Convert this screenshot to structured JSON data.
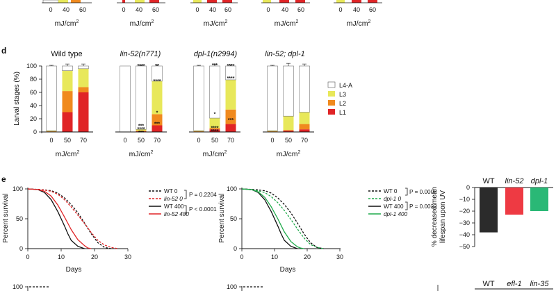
{
  "top_strip": {
    "groups": [
      {
        "ticks": [
          "0",
          "40",
          "60"
        ],
        "unit_label": "mJ/cm",
        "unit_sup": "2"
      },
      {
        "ticks": [
          "0",
          "40",
          "60"
        ],
        "unit_label": "mJ/cm",
        "unit_sup": "2"
      },
      {
        "ticks": [
          "0",
          "40",
          "60"
        ],
        "unit_label": "mJ/cm",
        "unit_sup": "2"
      },
      {
        "ticks": [
          "0",
          "40",
          "60"
        ],
        "unit_label": "mJ/cm",
        "unit_sup": "2"
      },
      {
        "ticks": [
          "0",
          "40",
          "60"
        ],
        "unit_label": "mJ/cm",
        "unit_sup": "2"
      }
    ],
    "colors": [
      "#e8e85a",
      "#f08a1e",
      "#e02426",
      "#ffffff"
    ]
  },
  "panel_d": {
    "label": "d",
    "y_axis_label": "Larval stages (%)",
    "y_ticks": [
      "0",
      "20",
      "40",
      "60",
      "80",
      "100"
    ],
    "legend": [
      {
        "name": "L4-A",
        "color": "#ffffff"
      },
      {
        "name": "L3",
        "color": "#e8e85a"
      },
      {
        "name": "L2",
        "color": "#f08a1e"
      },
      {
        "name": "L1",
        "color": "#e02426"
      }
    ],
    "unit_label": "mJ/cm",
    "unit_sup": "2",
    "chart_data": {
      "type": "bar",
      "stacked": true,
      "categories": [
        "0",
        "50",
        "70"
      ],
      "series_order": [
        "L1",
        "L2",
        "L3",
        "L4-A"
      ],
      "ylim": [
        0,
        100
      ],
      "groups": [
        {
          "title": "Wild type",
          "italic": false,
          "bars": [
            {
              "L1": 0,
              "L2": 1,
              "L3": 1,
              "L4-A": 98,
              "err": 1
            },
            {
              "L1": 30,
              "L2": 32,
              "L3": 31,
              "L4-A": 7,
              "err": 3
            },
            {
              "L1": 60,
              "L2": 8,
              "L3": 28,
              "L4-A": 4,
              "err": 3
            }
          ],
          "stars": [
            [],
            [],
            []
          ]
        },
        {
          "title": "lin-52(n771)",
          "italic": true,
          "bars": [
            {
              "L1": 0,
              "L2": 0,
              "L3": 0,
              "L4-A": 100,
              "err": 0
            },
            {
              "L1": 1,
              "L2": 1,
              "L3": 2,
              "L4-A": 96,
              "err": 1
            },
            {
              "L1": 10,
              "L2": 17,
              "L3": 50,
              "L4-A": 23,
              "err": 2
            }
          ],
          "stars": [
            [],
            [
              [
                "****",
                100
              ],
              [
                "***",
                9
              ],
              [
                "****",
                4
              ],
              [
                "***",
                -1
              ]
            ],
            [
              [
                "**",
                100
              ],
              [
                "****",
                77
              ],
              [
                "*",
                29
              ],
              [
                "***",
                12
              ]
            ]
          ]
        },
        {
          "title": "dpl-1(n2994)",
          "italic": true,
          "bars": [
            {
              "L1": 0,
              "L2": 1,
              "L3": 1,
              "L4-A": 98,
              "err": 1
            },
            {
              "L1": 4,
              "L2": 2,
              "L3": 15,
              "L4-A": 79,
              "err": 2
            },
            {
              "L1": 12,
              "L2": 22,
              "L3": 45,
              "L4-A": 21,
              "err": 2
            }
          ],
          "stars": [
            [],
            [
              [
                "***",
                101
              ],
              [
                "*",
                27
              ],
              [
                "****",
                6
              ],
              [
                "****",
                1
              ]
            ],
            [
              [
                "****",
                100
              ],
              [
                "****",
                81
              ],
              [
                "***",
                18
              ]
            ]
          ]
        },
        {
          "title": "lin-52; dpl-1",
          "italic": true,
          "bars": [
            {
              "L1": 0,
              "L2": 1,
              "L3": 1,
              "L4-A": 98,
              "err": 1
            },
            {
              "L1": 2,
              "L2": 1,
              "L3": 21,
              "L4-A": 76,
              "err": 4
            },
            {
              "L1": 4,
              "L2": 8,
              "L3": 18,
              "L4-A": 70,
              "err": 3
            }
          ],
          "stars": [
            [],
            [],
            []
          ]
        }
      ]
    }
  },
  "panel_e": {
    "label": "e",
    "left": {
      "y_label": "Percent survival",
      "x_label": "Days",
      "y_ticks": [
        "0",
        "50",
        "100"
      ],
      "x_ticks": [
        "0",
        "10",
        "20",
        "30"
      ],
      "legend": [
        {
          "name": "WT 0",
          "italic": false,
          "color": "#111111",
          "dash": true
        },
        {
          "name": "lin-52 0",
          "italic": true,
          "color": "#e02426",
          "dash": true
        },
        {
          "name": "WT 400",
          "italic": false,
          "color": "#111111",
          "dash": false
        },
        {
          "name": "lin-52 400",
          "italic": true,
          "color": "#e02426",
          "dash": false
        }
      ],
      "pvalues": [
        "P = 0.2204",
        "P < 0.0001"
      ],
      "chart_data": {
        "type": "line",
        "xlim": [
          0,
          30
        ],
        "ylim": [
          0,
          100
        ],
        "xlabel": "Days",
        "ylabel": "Percent survival",
        "series": [
          {
            "name": "WT 0",
            "color": "#111111",
            "dash": true,
            "x": [
              0,
              4,
              7,
              9,
              11,
              13,
              15,
              17,
              19,
              21,
              23,
              25
            ],
            "y": [
              100,
              99,
              97,
              93,
              85,
              74,
              60,
              43,
              25,
              10,
              2,
              0
            ]
          },
          {
            "name": "lin-52 0",
            "color": "#e02426",
            "dash": true,
            "x": [
              0,
              4,
              7,
              9,
              11,
              13,
              15,
              17,
              19,
              21,
              23,
              25,
              27
            ],
            "y": [
              100,
              99,
              96,
              91,
              82,
              70,
              56,
              42,
              27,
              14,
              6,
              2,
              0
            ]
          },
          {
            "name": "WT 400",
            "color": "#111111",
            "dash": false,
            "x": [
              0,
              3,
              5,
              7,
              9,
              11,
              12,
              13,
              15,
              17
            ],
            "y": [
              100,
              99,
              94,
              82,
              62,
              38,
              25,
              14,
              4,
              0
            ]
          },
          {
            "name": "lin-52 400",
            "color": "#e02426",
            "dash": false,
            "x": [
              0,
              3,
              5,
              7,
              9,
              11,
              13,
              15,
              17,
              18,
              19
            ],
            "y": [
              100,
              99,
              96,
              88,
              73,
              53,
              32,
              15,
              5,
              1,
              0
            ]
          }
        ]
      }
    },
    "right": {
      "y_label": "Percent survival",
      "x_label": "Days",
      "y_ticks": [
        "0",
        "50",
        "100"
      ],
      "x_ticks": [
        "0",
        "10",
        "20",
        "30"
      ],
      "legend": [
        {
          "name": "WT 0",
          "italic": false,
          "color": "#111111",
          "dash": true
        },
        {
          "name": "dpl-1 0",
          "italic": true,
          "color": "#1faa4a",
          "dash": true
        },
        {
          "name": "WT 400",
          "italic": false,
          "color": "#111111",
          "dash": false
        },
        {
          "name": "dpl-1 400",
          "italic": true,
          "color": "#1faa4a",
          "dash": false
        }
      ],
      "pvalues": [
        "P = 0.0002",
        "P = 0.0022"
      ],
      "chart_data": {
        "type": "line",
        "xlim": [
          0,
          30
        ],
        "ylim": [
          0,
          100
        ],
        "xlabel": "Days",
        "ylabel": "Percent survival",
        "series": [
          {
            "name": "WT 0",
            "color": "#111111",
            "dash": true,
            "x": [
              0,
              4,
              7,
              9,
              11,
              13,
              15,
              17,
              19,
              21,
              23,
              25
            ],
            "y": [
              100,
              99,
              97,
              93,
              85,
              74,
              60,
              43,
              25,
              10,
              2,
              0
            ]
          },
          {
            "name": "dpl-1 0",
            "color": "#1faa4a",
            "dash": true,
            "x": [
              0,
              4,
              7,
              9,
              11,
              13,
              15,
              17,
              19,
              21,
              23,
              25
            ],
            "y": [
              100,
              98,
              94,
              87,
              77,
              64,
              49,
              33,
              18,
              7,
              2,
              0
            ]
          },
          {
            "name": "WT 400",
            "color": "#111111",
            "dash": false,
            "x": [
              0,
              3,
              5,
              7,
              9,
              11,
              12,
              13,
              15,
              17
            ],
            "y": [
              100,
              99,
              94,
              82,
              62,
              38,
              25,
              14,
              4,
              0
            ]
          },
          {
            "name": "dpl-1 400",
            "color": "#1faa4a",
            "dash": false,
            "x": [
              0,
              3,
              5,
              7,
              9,
              11,
              13,
              15,
              17,
              18,
              19
            ],
            "y": [
              100,
              99,
              95,
              86,
              70,
              50,
              28,
              12,
              3,
              1,
              0
            ]
          }
        ]
      }
    },
    "bar": {
      "y_label_line1": "% decreased mean",
      "y_label_line2": "lifespan upon UV",
      "y_ticks": [
        "0",
        "−10",
        "−20",
        "−30",
        "−40",
        "−50"
      ],
      "chart_data": {
        "type": "bar",
        "categories": [
          "WT",
          "lin-52",
          "dpl-1"
        ],
        "italic": [
          false,
          true,
          true
        ],
        "values": [
          -38,
          -23,
          -20
        ],
        "colors": [
          "#2b2b2b",
          "#ee3a43",
          "#2ab876"
        ],
        "ylim": [
          -50,
          0
        ]
      }
    }
  },
  "bottom_strip": {
    "ticks_left": [
      "100"
    ],
    "ticks_right": [
      "100"
    ],
    "bar_categories": [
      "WT",
      "efl-1",
      "lin-35"
    ],
    "bar_italic": [
      false,
      true,
      true
    ]
  }
}
